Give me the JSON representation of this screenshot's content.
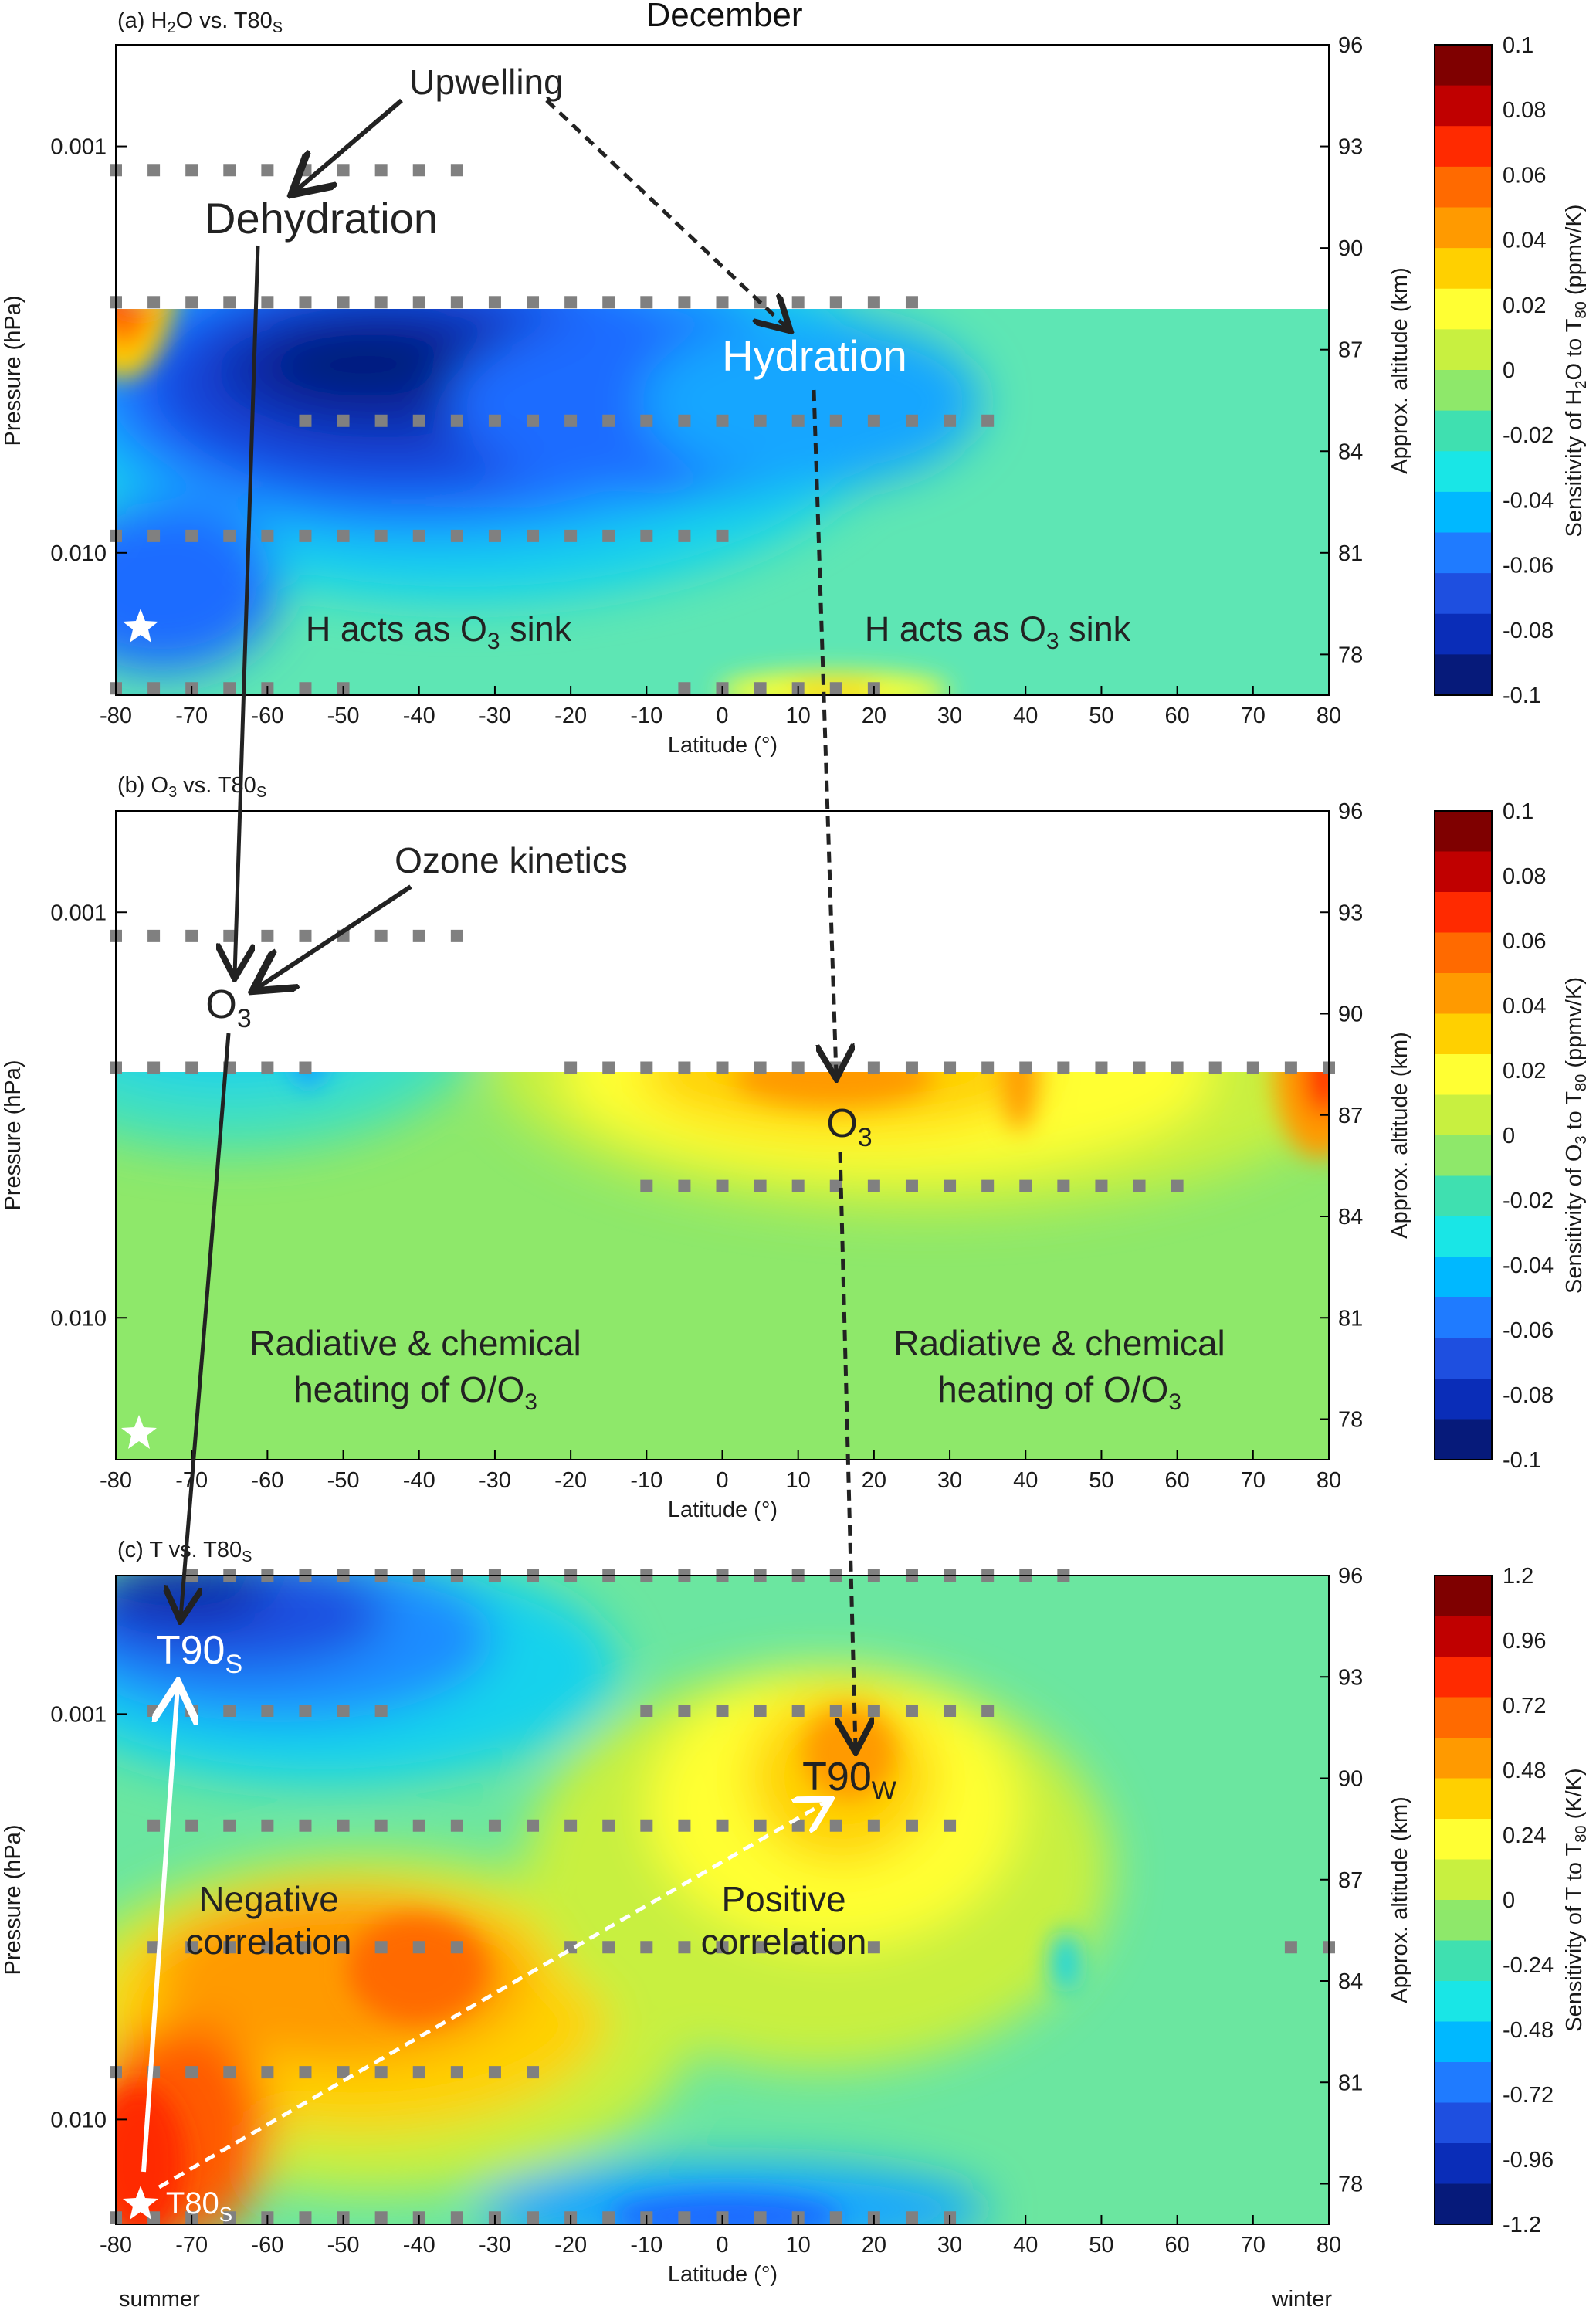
{
  "figure": {
    "month_title": "December",
    "hemisphere_left": "summer",
    "hemisphere_right": "winter"
  },
  "chart_data": [
    {
      "type": "heatmap",
      "panel_title": "(a) H2O vs. T80S",
      "xlabel": "Latitude (°)",
      "ylabel": "Pressure (hPa)",
      "y2label": "Approx. altitude (km)",
      "colorbar_label": "Sensitivity of H2O to T80 (ppmv/K)",
      "x_ticks": [
        -80,
        -70,
        -60,
        -50,
        -40,
        -30,
        -20,
        -10,
        0,
        10,
        20,
        30,
        40,
        50,
        60,
        70,
        80
      ],
      "xlim": [
        -80,
        80
      ],
      "y_ticks": [
        "0.001",
        "0.010"
      ],
      "y2_ticks": [
        96,
        93,
        90,
        87,
        84,
        81,
        78
      ],
      "colorbar_ticks": [
        "0.1",
        "0.08",
        "0.06",
        "0.04",
        "0.02",
        "0",
        "-0.02",
        "-0.04",
        "-0.06",
        "-0.08",
        "-0.1"
      ],
      "colorscale": [
        "#7f0000",
        "#c00000",
        "#ff2a00",
        "#ff6a00",
        "#ff9a00",
        "#ffd000",
        "#ffff33",
        "#c8f040",
        "#8ee86a",
        "#3fe0b0",
        "#19e6e6",
        "#00b8ff",
        "#1f7bff",
        "#1e4fe0",
        "#0a2db8",
        "#061a7a"
      ],
      "annotations": [
        {
          "text": "Upwelling",
          "lat": -43,
          "alt": 95.2,
          "size": 46
        },
        {
          "text": "Dehydration",
          "lat": -66,
          "alt": 90.6,
          "size": 56
        },
        {
          "text": "Hydration",
          "lat": 8,
          "alt": 87.1,
          "size": 56,
          "white": true
        },
        {
          "text": "H acts as O3 sink",
          "lat": -37,
          "alt": 78.9,
          "size": 45
        },
        {
          "text": "H acts as O3 sink",
          "lat": 36,
          "alt": 78.9,
          "size": 45
        }
      ]
    },
    {
      "type": "heatmap",
      "panel_title": "(b) O3 vs. T80S",
      "xlabel": "Latitude (°)",
      "ylabel": "Pressure (hPa)",
      "y2label": "Approx. altitude (km)",
      "colorbar_label": "Sensitivity of O3 to T80 (ppmv/K)",
      "x_ticks": [
        -80,
        -70,
        -60,
        -50,
        -40,
        -30,
        -20,
        -10,
        0,
        10,
        20,
        30,
        40,
        50,
        60,
        70,
        80
      ],
      "xlim": [
        -80,
        80
      ],
      "y_ticks": [
        "0.001",
        "0.010"
      ],
      "y2_ticks": [
        96,
        93,
        90,
        87,
        84,
        81,
        78
      ],
      "colorbar_ticks": [
        "0.1",
        "0.08",
        "0.06",
        "0.04",
        "0.02",
        "0",
        "-0.02",
        "-0.04",
        "-0.06",
        "-0.08",
        "-0.1"
      ],
      "colorscale": [
        "#7f0000",
        "#c00000",
        "#ff2a00",
        "#ff6a00",
        "#ff9a00",
        "#ffd000",
        "#ffff33",
        "#c8f040",
        "#8ee86a",
        "#3fe0b0",
        "#19e6e6",
        "#00b8ff",
        "#1f7bff",
        "#1e4fe0",
        "#0a2db8",
        "#061a7a"
      ],
      "annotations": [
        {
          "text": "Ozone kinetics",
          "lat": -45,
          "alt": 94.7,
          "size": 46
        },
        {
          "text": "O3",
          "lat": -64,
          "alt": 89.5,
          "size": 52
        },
        {
          "text": "O3",
          "lat": 16,
          "alt": 87.0,
          "size": 52
        },
        {
          "text": "Radiative & chemical",
          "lat": -41,
          "alt": 80.6,
          "size": 46
        },
        {
          "text": "heating of O/O3",
          "lat": -41,
          "alt": 79.1,
          "size": 46
        },
        {
          "text": "Radiative & chemical",
          "lat": 44,
          "alt": 80.6,
          "size": 46
        },
        {
          "text": "heating of O/O3",
          "lat": 44,
          "alt": 79.1,
          "size": 46
        }
      ]
    },
    {
      "type": "heatmap",
      "panel_title": "(c) T vs. T80S",
      "xlabel": "Latitude (°)",
      "ylabel": "Pressure (hPa)",
      "y2label": "Approx. altitude (km)",
      "colorbar_label": "Sensitivity of T to T80 (K/K)",
      "x_ticks": [
        -80,
        -70,
        -60,
        -50,
        -40,
        -30,
        -20,
        -10,
        0,
        10,
        20,
        30,
        40,
        50,
        60,
        70,
        80
      ],
      "xlim": [
        -80,
        80
      ],
      "y_ticks": [
        "0.001",
        "0.010"
      ],
      "y2_ticks": [
        96,
        93,
        90,
        87,
        84,
        81,
        78
      ],
      "colorbar_ticks": [
        "1.2",
        "0.96",
        "0.72",
        "0.48",
        "0.24",
        "0",
        "-0.24",
        "-0.48",
        "-0.72",
        "-0.96",
        "-1.2"
      ],
      "colorscale": [
        "#7f0000",
        "#c00000",
        "#ff2a00",
        "#ff6a00",
        "#ff9a00",
        "#ffd000",
        "#ffff33",
        "#c8f040",
        "#8ee86a",
        "#3fe0b0",
        "#19e6e6",
        "#00b8ff",
        "#1f7bff",
        "#1e4fe0",
        "#0a2db8",
        "#061a7a"
      ],
      "annotations": [
        {
          "text": "T90S",
          "lat": -73,
          "alt": 93.9,
          "size": 52,
          "white": true
        },
        {
          "text": "T90W",
          "lat": 16,
          "alt": 90.2,
          "size": 52
        },
        {
          "text": "Negative",
          "lat": -59,
          "alt": 86.9,
          "size": 46
        },
        {
          "text": "correlation",
          "lat": -59,
          "alt": 85.6,
          "size": 46
        },
        {
          "text": "Positive",
          "lat": 8,
          "alt": 86.9,
          "size": 46
        },
        {
          "text": "correlation",
          "lat": 8,
          "alt": 85.6,
          "size": 46
        },
        {
          "text": "T80S",
          "lat": -71,
          "alt": 77.5,
          "size": 40,
          "white": true
        }
      ]
    }
  ]
}
